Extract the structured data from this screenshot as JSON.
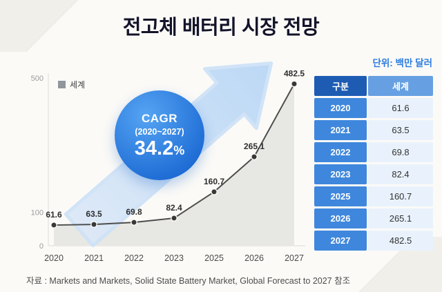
{
  "title": "전고체 배터리 시장 전망",
  "unit_label": "단위: 백만 달러",
  "legend": {
    "label": "세계"
  },
  "cagr": {
    "line1": "CAGR",
    "line2": "(2020~2027)",
    "value": "34.2",
    "percent": "%"
  },
  "source": "자료 : Markets and Markets, Solid State Battery Market, Global Forecast to 2027 참조",
  "chart_data": {
    "type": "line",
    "title": "전고체 배터리 시장 전망",
    "x": [
      "2020",
      "2021",
      "2022",
      "2023",
      "2025",
      "2026",
      "2027"
    ],
    "series": [
      {
        "name": "세계",
        "values": [
          61.6,
          63.5,
          69.8,
          82.4,
          160.7,
          265.1,
          482.5
        ]
      }
    ],
    "yticks": [
      0,
      100,
      500
    ],
    "ylim": [
      0,
      500
    ],
    "grid": false,
    "area_fill": true,
    "legend_position": "top-left",
    "annotations": [
      "CAGR (2020~2027) 34.2%"
    ]
  },
  "table": {
    "headers": [
      "구분",
      "세계"
    ],
    "rows": [
      {
        "year": "2020",
        "value": "61.6"
      },
      {
        "year": "2021",
        "value": "63.5"
      },
      {
        "year": "2022",
        "value": "69.8"
      },
      {
        "year": "2023",
        "value": "82.4"
      },
      {
        "year": "2025",
        "value": "160.7"
      },
      {
        "year": "2026",
        "value": "265.1"
      },
      {
        "year": "2027",
        "value": "482.5"
      }
    ]
  },
  "colors": {
    "accent_blue": "#2b7ce0",
    "table_header_dark": "#1e5cb3",
    "table_header_light": "#66a0e2",
    "table_year_cell": "#3f87dc",
    "table_value_cell": "#e9f2fc",
    "arrow": "#cddff4",
    "area_fill": "#e7e7e3",
    "line": "#4d4d4d",
    "cagr_circle": "#2f80e4"
  }
}
